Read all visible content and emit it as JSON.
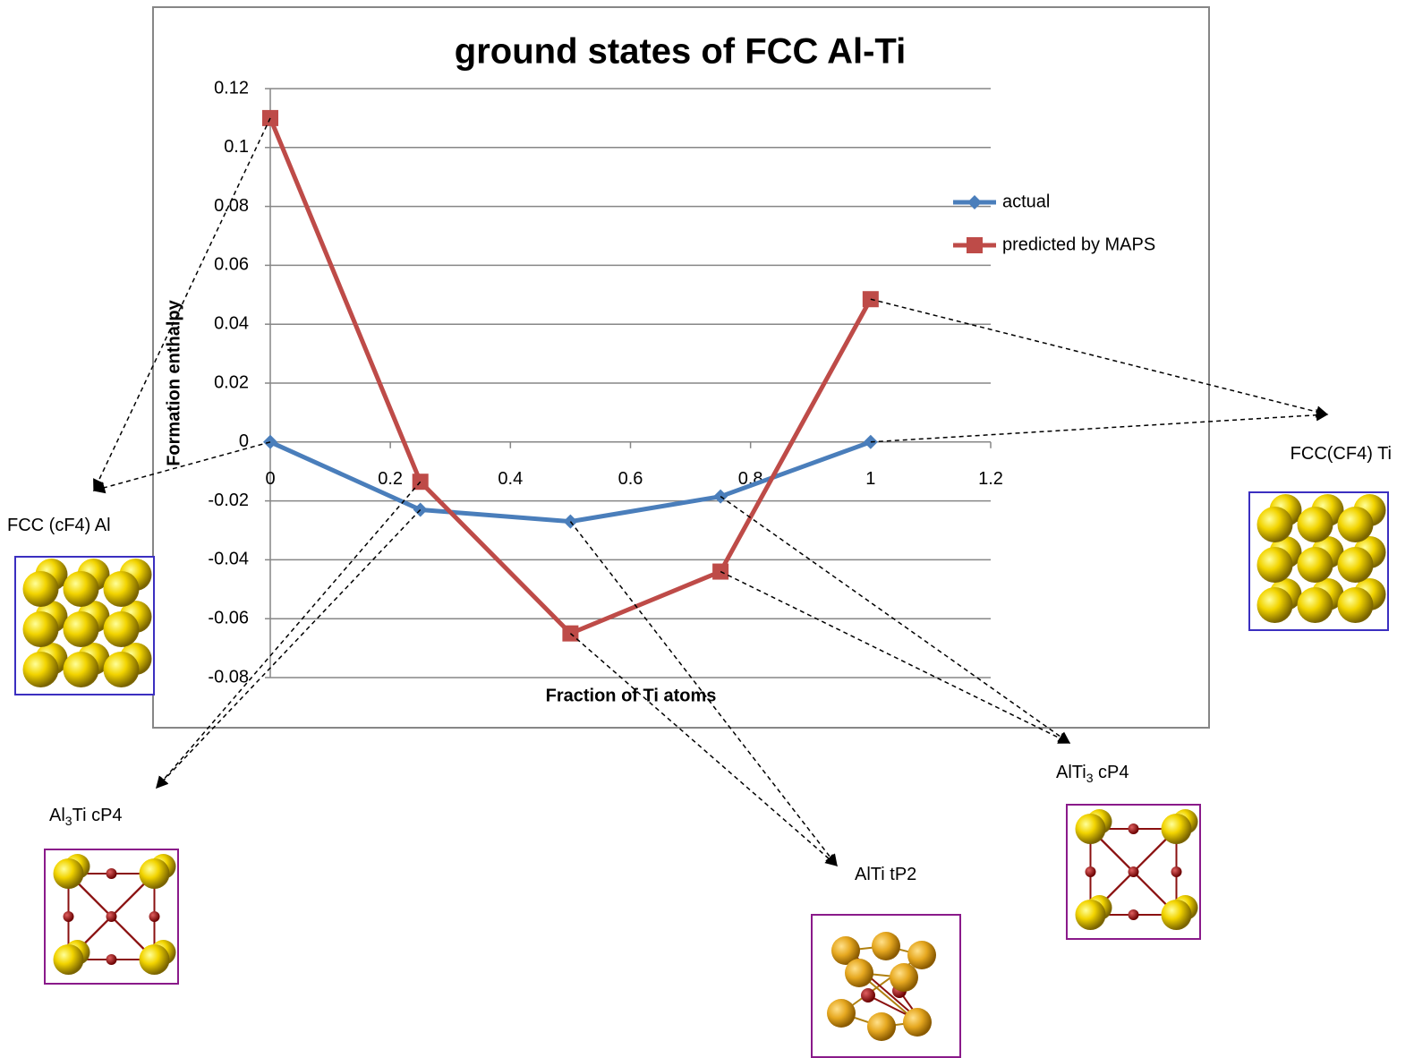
{
  "chart_data": {
    "type": "line",
    "title": "ground states of FCC Al-Ti",
    "x_label": "Fraction of Ti atoms",
    "y_label": "Formation enthalpy",
    "x": [
      0,
      0.25,
      0.5,
      0.75,
      1
    ],
    "series": [
      {
        "name": "actual",
        "color": "#4a7ebb",
        "marker": "diamond",
        "values": [
          0,
          -0.023,
          -0.027,
          -0.0185,
          0
        ]
      },
      {
        "name": "predicted by MAPS",
        "color": "#be4b48",
        "marker": "square",
        "values": [
          0.11,
          -0.0135,
          -0.065,
          -0.044,
          0.0485
        ]
      }
    ],
    "xlim": [
      0,
      1.2
    ],
    "xticks": [
      0,
      0.2,
      0.4,
      0.6,
      0.8,
      1,
      1.2
    ],
    "ylim": [
      -0.08,
      0.12
    ],
    "yticks": [
      -0.08,
      -0.06,
      -0.04,
      -0.02,
      0,
      0.02,
      0.04,
      0.06,
      0.08,
      0.1,
      0.12
    ],
    "grid": true,
    "legend": "right",
    "annotations": [
      [
        "FCC (cF4) Al"
      ],
      [
        "Al",
        "3",
        "Ti  cP4"
      ],
      [
        "AlTi tP2"
      ],
      [
        "AlTi",
        "3",
        "  cP4"
      ],
      [
        "FCC(CF4) Ti"
      ]
    ]
  }
}
